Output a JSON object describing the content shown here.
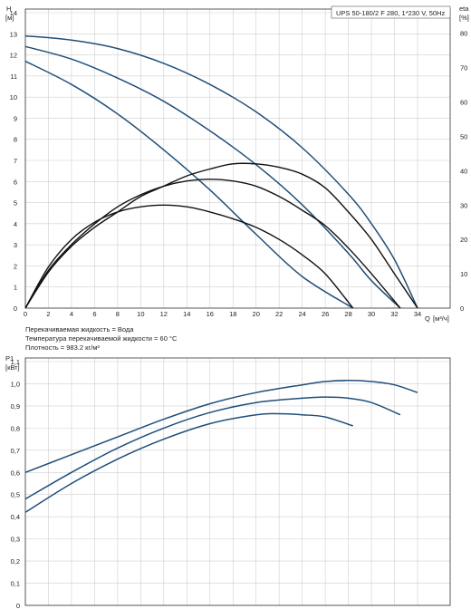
{
  "header": {
    "model": "UPS 50-180/2 F 280, 1*230 V, 50Hz"
  },
  "notes": {
    "fluid": "Перекачиваемая жидкость = Вода",
    "temperature": "Температура перекачиваемой жидкости = 60 °C",
    "density": "Плотность = 983.2 кг/м³"
  },
  "colors": {
    "curve": "#1f4e79",
    "efficiency": "#111111",
    "grid": "#cfcfcf"
  },
  "chart_data": [
    {
      "type": "line",
      "ylabel": "H",
      "yunit": "[м]",
      "y2label": "eta",
      "y2unit": "[%]",
      "xlabel": "Q",
      "xunit": "[м³/ч]",
      "xlim": [
        0,
        34
      ],
      "ylim": [
        0,
        14
      ],
      "y2lim": [
        0,
        80
      ],
      "x_ticks": [
        "0",
        "2",
        "4",
        "6",
        "8",
        "10",
        "12",
        "14",
        "16",
        "18",
        "20",
        "22",
        "24",
        "26",
        "28",
        "30",
        "32",
        "34"
      ],
      "y_ticks": [
        "0",
        "1",
        "2",
        "3",
        "4",
        "5",
        "6",
        "7",
        "8",
        "9",
        "10",
        "11",
        "12",
        "13",
        "14"
      ],
      "y2_ticks": [
        "0",
        "10",
        "20",
        "30",
        "40",
        "50",
        "60",
        "70",
        "80"
      ],
      "grid": true,
      "series": [
        {
          "kind": "head",
          "x": [
            0,
            4,
            8,
            12,
            16,
            20,
            24,
            28,
            30,
            32,
            34
          ],
          "values": [
            12.9,
            12.7,
            12.3,
            11.6,
            10.6,
            9.3,
            7.6,
            5.4,
            4.0,
            2.3,
            0.0
          ]
        },
        {
          "kind": "head",
          "x": [
            0,
            4,
            8,
            12,
            16,
            20,
            24,
            28,
            30,
            32.5
          ],
          "values": [
            12.4,
            11.8,
            10.9,
            9.8,
            8.4,
            6.8,
            4.9,
            2.6,
            1.3,
            0.0
          ]
        },
        {
          "kind": "head",
          "x": [
            0,
            4,
            8,
            12,
            16,
            20,
            24,
            28.4
          ],
          "values": [
            11.7,
            10.6,
            9.2,
            7.5,
            5.6,
            3.5,
            1.5,
            0.0
          ]
        },
        {
          "kind": "efficiency",
          "x": [
            0,
            2,
            4,
            6,
            8,
            10,
            12,
            14,
            16,
            18,
            20,
            22,
            24,
            26,
            28,
            30,
            32,
            34
          ],
          "values": [
            0,
            10.5,
            18,
            23.5,
            28,
            32.5,
            35.5,
            38.5,
            40.5,
            42,
            42,
            41,
            39,
            35,
            28,
            20,
            10,
            0
          ]
        },
        {
          "kind": "efficiency",
          "x": [
            0,
            2,
            4,
            6,
            8,
            10,
            12,
            14,
            16,
            18,
            20,
            22,
            24,
            26,
            28,
            30,
            32.5
          ],
          "values": [
            0,
            11,
            18.5,
            24.5,
            29.5,
            33,
            35.5,
            37,
            37.5,
            37,
            35.5,
            32.5,
            28.5,
            24,
            17.5,
            10,
            0
          ]
        },
        {
          "kind": "efficiency",
          "x": [
            0,
            2,
            4,
            6,
            8,
            10,
            12,
            14,
            16,
            18,
            20,
            22,
            24,
            26,
            28.4
          ],
          "values": [
            0,
            12,
            20,
            25,
            28,
            29.5,
            30,
            29.5,
            28,
            26,
            23.5,
            20,
            15.5,
            10,
            0
          ]
        }
      ]
    },
    {
      "type": "line",
      "ylabel": "P1",
      "yunit": "[кВт]",
      "xlim": [
        0,
        34
      ],
      "ylim": [
        0,
        1.1
      ],
      "y_ticks": [
        "0",
        "0,1",
        "0,2",
        "0,3",
        "0,4",
        "0,5",
        "0,6",
        "0,7",
        "0,8",
        "0,9",
        "1,0",
        "1,1"
      ],
      "grid": true,
      "series": [
        {
          "kind": "power",
          "x": [
            0,
            4,
            8,
            12,
            16,
            20,
            24,
            26,
            28,
            30,
            32,
            34
          ],
          "values": [
            0.6,
            0.68,
            0.76,
            0.84,
            0.91,
            0.96,
            0.995,
            1.01,
            1.015,
            1.01,
            0.995,
            0.96
          ]
        },
        {
          "kind": "power",
          "x": [
            0,
            4,
            8,
            12,
            16,
            20,
            24,
            26,
            28,
            30,
            32.5
          ],
          "values": [
            0.48,
            0.6,
            0.71,
            0.8,
            0.87,
            0.915,
            0.935,
            0.94,
            0.935,
            0.915,
            0.86
          ]
        },
        {
          "kind": "power",
          "x": [
            0,
            4,
            8,
            12,
            16,
            20,
            22,
            24,
            26,
            28.4
          ],
          "values": [
            0.42,
            0.55,
            0.66,
            0.75,
            0.82,
            0.86,
            0.865,
            0.86,
            0.85,
            0.81
          ]
        }
      ]
    }
  ]
}
